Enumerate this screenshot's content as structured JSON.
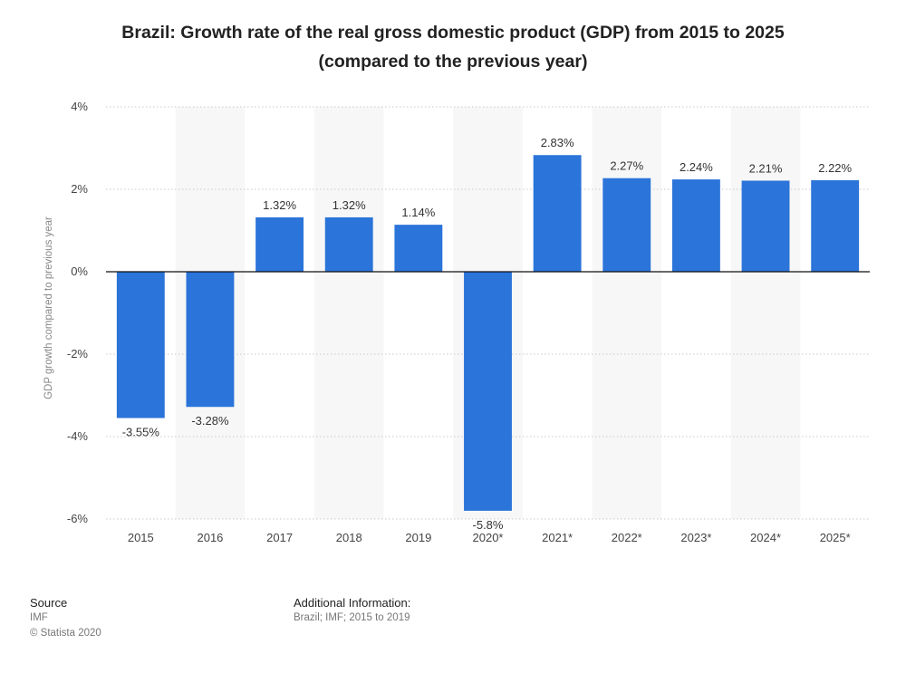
{
  "title_line1": "Brazil: Growth rate of the real gross domestic product (GDP) from 2015 to 2025",
  "title_line2": "(compared to the previous year)",
  "footer": {
    "source_heading": "Source",
    "source_name": "IMF",
    "copyright": "© Statista 2020",
    "additional_heading": "Additional Information:",
    "additional_text": "Brazil; IMF; 2015 to 2019"
  },
  "colors": {
    "bar": "#2b74d9",
    "band": "#f7f7f7",
    "grid": "#c9c9c9",
    "zero_line": "#111111",
    "text": "#444444"
  },
  "chart_data": {
    "type": "bar",
    "title": "Brazil: Growth rate of the real gross domestic product (GDP) from 2015 to 2025 (compared to the previous year)",
    "xlabel": "",
    "ylabel": "GDP growth compared to previous year",
    "categories": [
      "2015",
      "2016",
      "2017",
      "2018",
      "2019",
      "2020*",
      "2021*",
      "2022*",
      "2023*",
      "2024*",
      "2025*"
    ],
    "values": [
      -3.55,
      -3.28,
      1.32,
      1.32,
      1.14,
      -5.8,
      2.83,
      2.27,
      2.24,
      2.21,
      2.22
    ],
    "value_labels": [
      "-3.55%",
      "-3.28%",
      "1.32%",
      "1.32%",
      "1.14%",
      "-5.8%",
      "2.83%",
      "2.27%",
      "2.24%",
      "2.21%",
      "2.22%"
    ],
    "yticks": [
      4,
      2,
      0,
      -2,
      -4,
      -6
    ],
    "ytick_labels": [
      "4%",
      "2%",
      "0%",
      "-2%",
      "-4%",
      "-6%"
    ],
    "ylim": [
      -6,
      4
    ],
    "grid": true
  }
}
